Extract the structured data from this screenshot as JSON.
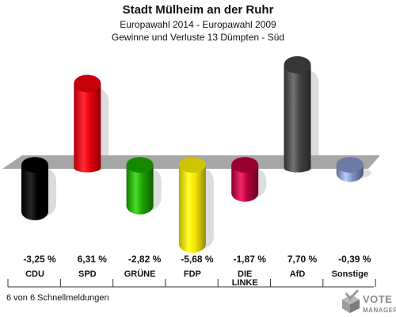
{
  "header": {
    "title": "Stadt Mülheim an der Ruhr",
    "subtitle1": "Europawahl 2014 - Europawahl 2009",
    "subtitle2": "Gewinne und Verluste 13 Dümpten - Süd"
  },
  "footer": {
    "reporting": "6 von 6 Schnellmeldungen"
  },
  "logo": {
    "line1": "VOTE",
    "line2": "MANAGER"
  },
  "chart_data": {
    "type": "bar",
    "title": "Stadt Mülheim an der Ruhr",
    "subtitle": "Europawahl 2014 - Europawahl 2009",
    "categories": [
      "CDU",
      "SPD",
      "GRÜNE",
      "FDP",
      "DIE LINKE",
      "AfD",
      "Sonstige"
    ],
    "category_lines": [
      [
        "CDU"
      ],
      [
        "SPD"
      ],
      [
        "GRÜNE"
      ],
      [
        "FDP"
      ],
      [
        "DIE",
        "LINKE"
      ],
      [
        "AfD"
      ],
      [
        "Sonstige"
      ]
    ],
    "values": [
      -3.25,
      6.31,
      -2.82,
      -5.68,
      -1.87,
      7.7,
      -0.39
    ],
    "value_labels": [
      "-3,25 %",
      "6,31 %",
      "-2,82 %",
      "-5,68 %",
      "-1,87 %",
      "7,70 %",
      "-0,39 %"
    ],
    "colors": [
      "#000000",
      "#e8000b",
      "#1aa000",
      "#f5e600",
      "#b3003a",
      "#404040",
      "#8090c0"
    ],
    "ylim": [
      -8,
      8
    ],
    "grid": false,
    "legend": "none"
  }
}
